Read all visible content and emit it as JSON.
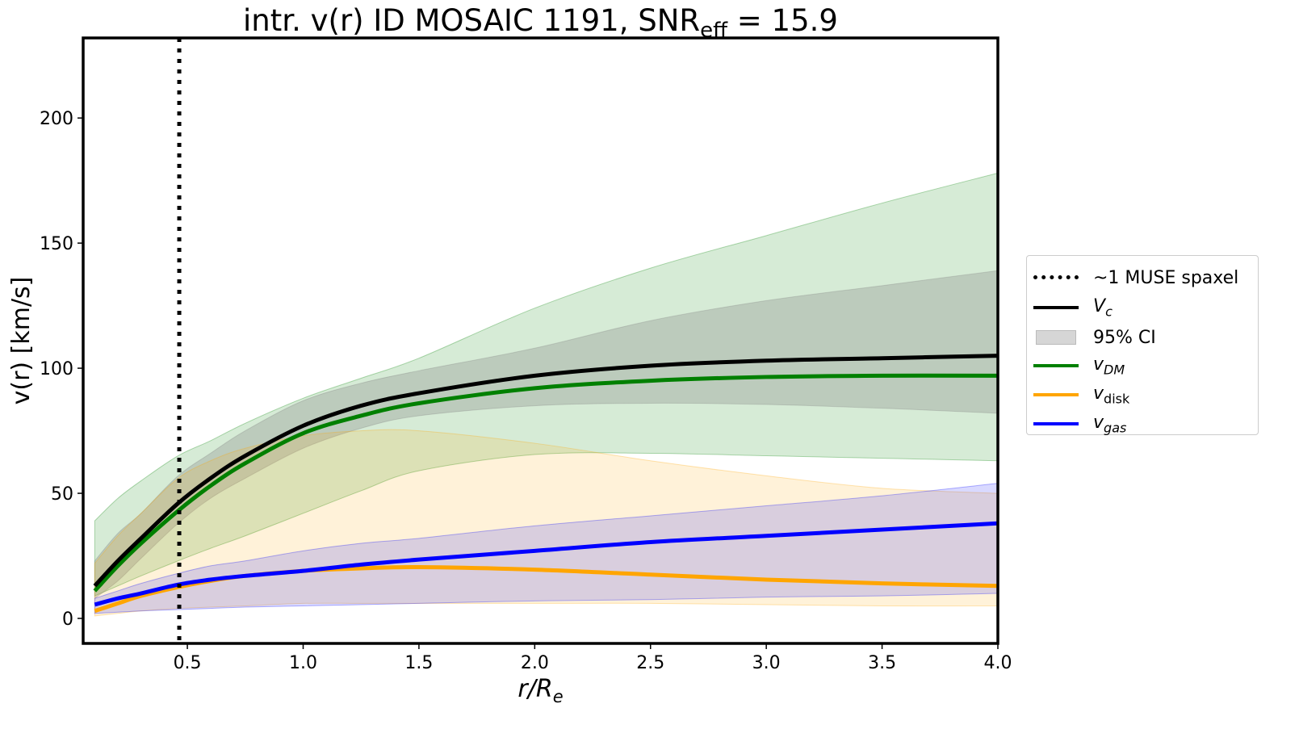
{
  "chart_data": {
    "type": "line",
    "title": {
      "main": "intr. v(r) ID MOSAIC 1191, SNR",
      "sub": "eff",
      "tail": " = 15.9"
    },
    "xlabel": {
      "main": "r/R",
      "sub": "e"
    },
    "ylabel": "v(r) [km/s]",
    "xlim": [
      0.05,
      4.0
    ],
    "ylim": [
      -10,
      232
    ],
    "xticks": [
      0.5,
      1.0,
      1.5,
      2.0,
      2.5,
      3.0,
      3.5,
      4.0
    ],
    "xtick_labels": [
      "0.5",
      "1.0",
      "1.5",
      "2.0",
      "2.5",
      "3.0",
      "3.5",
      "4.0"
    ],
    "yticks": [
      0,
      50,
      100,
      150,
      200
    ],
    "ytick_labels": [
      "0",
      "50",
      "100",
      "150",
      "200"
    ],
    "grid": false,
    "vline": {
      "x": 0.465,
      "label": "~1 MUSE spaxel"
    },
    "x": [
      0.1,
      0.2,
      0.3,
      0.46,
      0.6,
      0.75,
      1.0,
      1.25,
      1.5,
      2.0,
      2.5,
      3.0,
      3.5,
      4.0
    ],
    "series": [
      {
        "name": "v_DM",
        "label_main": "v",
        "label_sub": "DM",
        "sub_italic": true,
        "color": "#008000",
        "values": [
          11,
          21,
          30,
          43,
          53,
          62,
          74,
          81,
          86,
          92,
          95,
          96.5,
          97,
          97
        ],
        "ci_low": [
          9,
          13,
          17,
          23,
          28,
          33,
          42,
          51,
          59,
          65.5,
          66,
          65,
          64,
          63
        ],
        "ci_high": [
          39,
          48,
          55,
          65,
          71,
          78,
          88,
          96,
          104,
          124,
          140,
          153,
          166,
          178
        ]
      },
      {
        "name": "V_c",
        "label_main": "V",
        "label_sub": "c",
        "sub_italic": true,
        "color": "#000000",
        "band_color": "#808080",
        "values": [
          13,
          23,
          32,
          46,
          56,
          65,
          77,
          85,
          90,
          97,
          101,
          103,
          104,
          105
        ],
        "ci_low": [
          8,
          15,
          24,
          38,
          48,
          56,
          68,
          76,
          81,
          85,
          86,
          85.5,
          84,
          82
        ],
        "ci_high": [
          23,
          34,
          42,
          57,
          66,
          75,
          87,
          94,
          99,
          108,
          119,
          127,
          133,
          139
        ]
      },
      {
        "name": "v_disk",
        "label_main": "v",
        "label_sub": "disk",
        "sub_italic": false,
        "color": "#ffa500",
        "values": [
          3,
          6,
          9,
          12.5,
          15,
          17,
          19,
          20,
          20.5,
          19.5,
          17.5,
          15.5,
          14,
          13
        ],
        "ci_low": [
          1,
          2,
          3,
          4,
          4.5,
          5,
          6,
          6,
          6,
          6,
          6,
          5.5,
          5,
          5
        ],
        "ci_high": [
          22,
          33,
          42,
          56,
          63,
          68,
          73,
          75,
          75,
          70,
          63,
          57,
          52,
          50
        ]
      },
      {
        "name": "v_gas",
        "label_main": "v",
        "label_sub": "gas",
        "sub_italic": true,
        "color": "#0000ff",
        "values": [
          5.5,
          8,
          10,
          13.5,
          15.5,
          17,
          19,
          21.5,
          23.5,
          27,
          30.5,
          33,
          35.5,
          38
        ],
        "ci_low": [
          2,
          2.5,
          3,
          3.5,
          4,
          4.5,
          5,
          5.5,
          6,
          7,
          7.5,
          8.5,
          9,
          10
        ],
        "ci_high": [
          8,
          11,
          14,
          18,
          21,
          23,
          27,
          30,
          32,
          37,
          41,
          45,
          49,
          54
        ]
      }
    ],
    "legend": {
      "placement": "right",
      "ci_label": "95% CI"
    }
  }
}
